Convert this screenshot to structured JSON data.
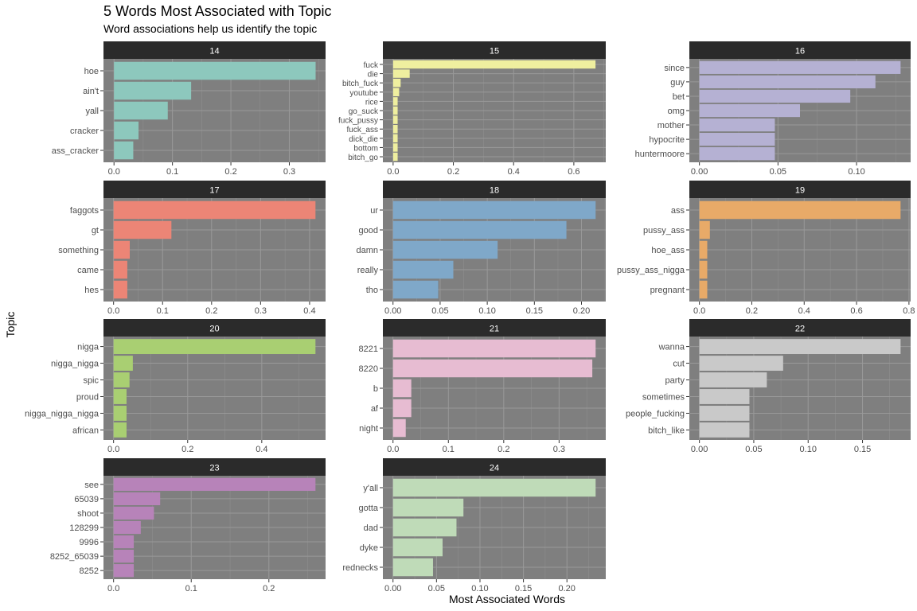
{
  "chart_data": {
    "type": "bar",
    "orientation": "horizontal",
    "title": "5 Words Most Associated with Topic",
    "subtitle": "Word associations help us identify the topic",
    "xlabel": "Most Associated Words",
    "ylabel": "Topic",
    "grid": true,
    "legend": "none",
    "facets": [
      {
        "label": "14",
        "color": "#8dc8bd",
        "words": [
          "hoe",
          "ain't",
          "yall",
          "cracker",
          "ass_cracker"
        ],
        "values": [
          0.345,
          0.132,
          0.092,
          0.042,
          0.033
        ],
        "ticks": [
          0,
          0.1,
          0.2,
          0.3
        ],
        "tick_labels": [
          "0.0",
          "0.1",
          "0.2",
          "0.3"
        ],
        "xlim": [
          -0.018,
          0.362
        ]
      },
      {
        "label": "15",
        "color": "#efef9f",
        "words": [
          "fuck",
          "die",
          "bitch_fuck",
          "youtube",
          "rice",
          "go_suck",
          "fuck_pussy",
          "fuck_ass",
          "dick_die",
          "bottom",
          "bitch_go"
        ],
        "values": [
          0.672,
          0.055,
          0.025,
          0.02,
          0.015,
          0.015,
          0.015,
          0.015,
          0.015,
          0.015,
          0.015
        ],
        "ticks": [
          0,
          0.2,
          0.4,
          0.6
        ],
        "tick_labels": [
          "0.0",
          "0.2",
          "0.4",
          "0.6"
        ],
        "xlim": [
          -0.034,
          0.706
        ]
      },
      {
        "label": "16",
        "color": "#b5b1d3",
        "words": [
          "since",
          "guy",
          "bet",
          "omg",
          "mother",
          "hypocrite",
          "huntermoore"
        ],
        "values": [
          0.128,
          0.112,
          0.096,
          0.064,
          0.048,
          0.048,
          0.048
        ],
        "ticks": [
          0,
          0.05,
          0.1
        ],
        "tick_labels": [
          "0.00",
          "0.05",
          "0.10"
        ],
        "xlim": [
          -0.0064,
          0.1344
        ]
      },
      {
        "label": "17",
        "color": "#ec8576",
        "words": [
          "faggots",
          "gt",
          "something",
          "came",
          "hes"
        ],
        "values": [
          0.412,
          0.118,
          0.033,
          0.028,
          0.028
        ],
        "ticks": [
          0,
          0.1,
          0.2,
          0.3,
          0.4
        ],
        "tick_labels": [
          "0.0",
          "0.1",
          "0.2",
          "0.3",
          "0.4"
        ],
        "xlim": [
          -0.0206,
          0.4326
        ]
      },
      {
        "label": "18",
        "color": "#7fa8c9",
        "words": [
          "ur",
          "good",
          "damn",
          "really",
          "tho"
        ],
        "values": [
          0.215,
          0.184,
          0.111,
          0.064,
          0.048
        ],
        "ticks": [
          0,
          0.05,
          0.1,
          0.15,
          0.2
        ],
        "tick_labels": [
          "0.00",
          "0.05",
          "0.10",
          "0.15",
          "0.20"
        ],
        "xlim": [
          -0.01075,
          0.22575
        ]
      },
      {
        "label": "19",
        "color": "#e8aa68",
        "words": [
          "ass",
          "pussy_ass",
          "hoe_ass",
          "pussy_ass_nigga",
          "pregnant"
        ],
        "values": [
          0.768,
          0.04,
          0.03,
          0.03,
          0.03
        ],
        "ticks": [
          0,
          0.2,
          0.4,
          0.6,
          0.8
        ],
        "tick_labels": [
          "0.0",
          "0.2",
          "0.4",
          "0.6",
          "0.8"
        ],
        "xlim": [
          -0.0384,
          0.8064
        ]
      },
      {
        "label": "20",
        "color": "#a9cf72",
        "words": [
          "nigga",
          "nigga_nigga",
          "spic",
          "proud",
          "nigga_nigga_nigga",
          "african"
        ],
        "values": [
          0.545,
          0.052,
          0.043,
          0.035,
          0.035,
          0.035
        ],
        "ticks": [
          0,
          0.2,
          0.4
        ],
        "tick_labels": [
          "0.0",
          "0.2",
          "0.4"
        ],
        "xlim": [
          -0.02725,
          0.57225
        ]
      },
      {
        "label": "21",
        "color": "#e7bcd2",
        "words": [
          "8221",
          "8220",
          "b",
          "af",
          "night"
        ],
        "values": [
          0.366,
          0.36,
          0.033,
          0.033,
          0.023
        ],
        "ticks": [
          0,
          0.1,
          0.2,
          0.3
        ],
        "tick_labels": [
          "0.0",
          "0.1",
          "0.2",
          "0.3"
        ],
        "xlim": [
          -0.0183,
          0.3843
        ]
      },
      {
        "label": "22",
        "color": "#c9c9c9",
        "words": [
          "wanna",
          "cut",
          "party",
          "sometimes",
          "people_fucking",
          "bitch_like"
        ],
        "values": [
          0.185,
          0.077,
          0.062,
          0.046,
          0.046,
          0.046
        ],
        "ticks": [
          0,
          0.05,
          0.1,
          0.15
        ],
        "tick_labels": [
          "0.00",
          "0.05",
          "0.10",
          "0.15"
        ],
        "xlim": [
          -0.00925,
          0.19425
        ]
      },
      {
        "label": "23",
        "color": "#b783b9",
        "words": [
          "see",
          "65039",
          "shoot",
          "128299",
          "9996",
          "8252_65039",
          "8252"
        ],
        "values": [
          0.26,
          0.06,
          0.052,
          0.035,
          0.026,
          0.026,
          0.026
        ],
        "ticks": [
          0,
          0.1,
          0.2
        ],
        "tick_labels": [
          "0.0",
          "0.1",
          "0.2"
        ],
        "xlim": [
          -0.013,
          0.273
        ]
      },
      {
        "label": "24",
        "color": "#bfdbb8",
        "words": [
          "y'all",
          "gotta",
          "dad",
          "dyke",
          "rednecks"
        ],
        "values": [
          0.233,
          0.081,
          0.073,
          0.057,
          0.046
        ],
        "ticks": [
          0,
          0.05,
          0.1,
          0.15,
          0.2
        ],
        "tick_labels": [
          "0.00",
          "0.05",
          "0.10",
          "0.15",
          "0.20"
        ],
        "xlim": [
          -0.01165,
          0.24465
        ]
      }
    ]
  }
}
